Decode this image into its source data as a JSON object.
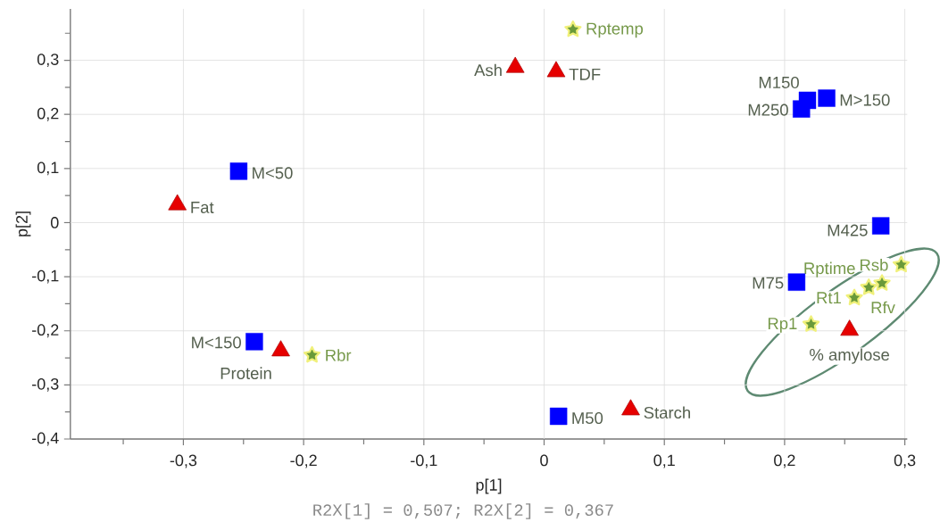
{
  "chart_data": {
    "type": "scatter",
    "xlabel": "p[1]",
    "ylabel": "p[2]",
    "xlim": [
      -0.394,
      0.302
    ],
    "ylim": [
      -0.4,
      0.395
    ],
    "xticks": [
      {
        "value": -0.35,
        "label": null
      },
      {
        "value": -0.3,
        "label": "-0,3"
      },
      {
        "value": -0.25,
        "label": null
      },
      {
        "value": -0.2,
        "label": "-0,2"
      },
      {
        "value": -0.15,
        "label": null
      },
      {
        "value": -0.1,
        "label": "-0,1"
      },
      {
        "value": -0.05,
        "label": null
      },
      0,
      {
        "value": 0.05,
        "label": null
      },
      {
        "value": 0.1,
        "label": "0,1"
      },
      {
        "value": 0.15,
        "label": null
      },
      {
        "value": 0.2,
        "label": "0,2"
      },
      {
        "value": 0.25,
        "label": null
      },
      {
        "value": 0.3,
        "label": "0,3"
      }
    ],
    "yticks": [
      {
        "value": -0.4,
        "label": "-0,4"
      },
      {
        "value": -0.35,
        "label": null
      },
      {
        "value": -0.3,
        "label": "-0,3"
      },
      {
        "value": -0.25,
        "label": null
      },
      {
        "value": -0.2,
        "label": "-0,2"
      },
      {
        "value": -0.15,
        "label": null
      },
      {
        "value": -0.1,
        "label": "-0,1"
      },
      {
        "value": -0.05,
        "label": null
      },
      0,
      {
        "value": 0.05,
        "label": null
      },
      {
        "value": 0.1,
        "label": "0,1"
      },
      {
        "value": 0.15,
        "label": null
      },
      {
        "value": 0.2,
        "label": "0,2"
      },
      {
        "value": 0.25,
        "label": null
      },
      {
        "value": 0.3,
        "label": "0,3"
      },
      {
        "value": 0.35,
        "label": null
      }
    ],
    "grid": true,
    "series": [
      {
        "color": "#0000ff",
        "marker": "square",
        "x": [
          -0.254,
          -0.241,
          0.219,
          0.214,
          0.235,
          0.28,
          0.21,
          0.012
        ],
        "values": [
          0.095,
          -0.22,
          0.226,
          0.21,
          0.23,
          -0.006,
          -0.11,
          -0.358
        ]
      },
      {
        "color": "#e60000",
        "marker": "triangle",
        "x": [
          -0.305,
          -0.219,
          -0.024,
          0.01,
          0.254,
          0.072
        ],
        "values": [
          0.033,
          -0.237,
          0.287,
          0.279,
          -0.199,
          -0.346
        ]
      },
      {
        "color": "#6a9a3a",
        "marker": "star",
        "x": [
          -0.193,
          0.024,
          0.297,
          0.27,
          0.281,
          0.258,
          0.222
        ],
        "values": [
          -0.245,
          0.357,
          -0.078,
          -0.12,
          -0.112,
          -0.139,
          -0.188
        ]
      }
    ],
    "annotations": [
      {
        "text": "M<50",
        "x": -0.254,
        "y": 0.095
      },
      {
        "text": "Fat",
        "x": -0.305,
        "y": 0.033
      },
      {
        "text": "M<150",
        "x": -0.241,
        "y": -0.22
      },
      {
        "text": "Protein",
        "x": -0.219,
        "y": -0.237
      },
      {
        "text": "Rbr",
        "x": -0.193,
        "y": -0.245
      },
      {
        "text": "Rptemp",
        "x": 0.024,
        "y": 0.357
      },
      {
        "text": "Ash",
        "x": -0.024,
        "y": 0.287
      },
      {
        "text": "TDF",
        "x": 0.01,
        "y": 0.279
      },
      {
        "text": "M150",
        "x": 0.219,
        "y": 0.226
      },
      {
        "text": "M250",
        "x": 0.214,
        "y": 0.21
      },
      {
        "text": "M>150",
        "x": 0.235,
        "y": 0.23
      },
      {
        "text": "M425",
        "x": 0.28,
        "y": -0.006
      },
      {
        "text": "M75",
        "x": 0.21,
        "y": -0.11
      },
      {
        "text": "Rsb",
        "x": 0.297,
        "y": -0.078
      },
      {
        "text": "Rptime",
        "x": 0.27,
        "y": -0.12
      },
      {
        "text": "Rfv",
        "x": 0.281,
        "y": -0.112
      },
      {
        "text": "Rt1",
        "x": 0.258,
        "y": -0.139
      },
      {
        "text": "Rp1",
        "x": 0.222,
        "y": -0.188
      },
      {
        "text": "% amylose",
        "x": 0.254,
        "y": -0.199
      },
      {
        "text": "M50",
        "x": 0.012,
        "y": -0.358
      },
      {
        "text": "Starch",
        "x": 0.072,
        "y": -0.346
      },
      "R2X[1] = 0,507; R2X[2] = 0,367"
    ]
  }
}
